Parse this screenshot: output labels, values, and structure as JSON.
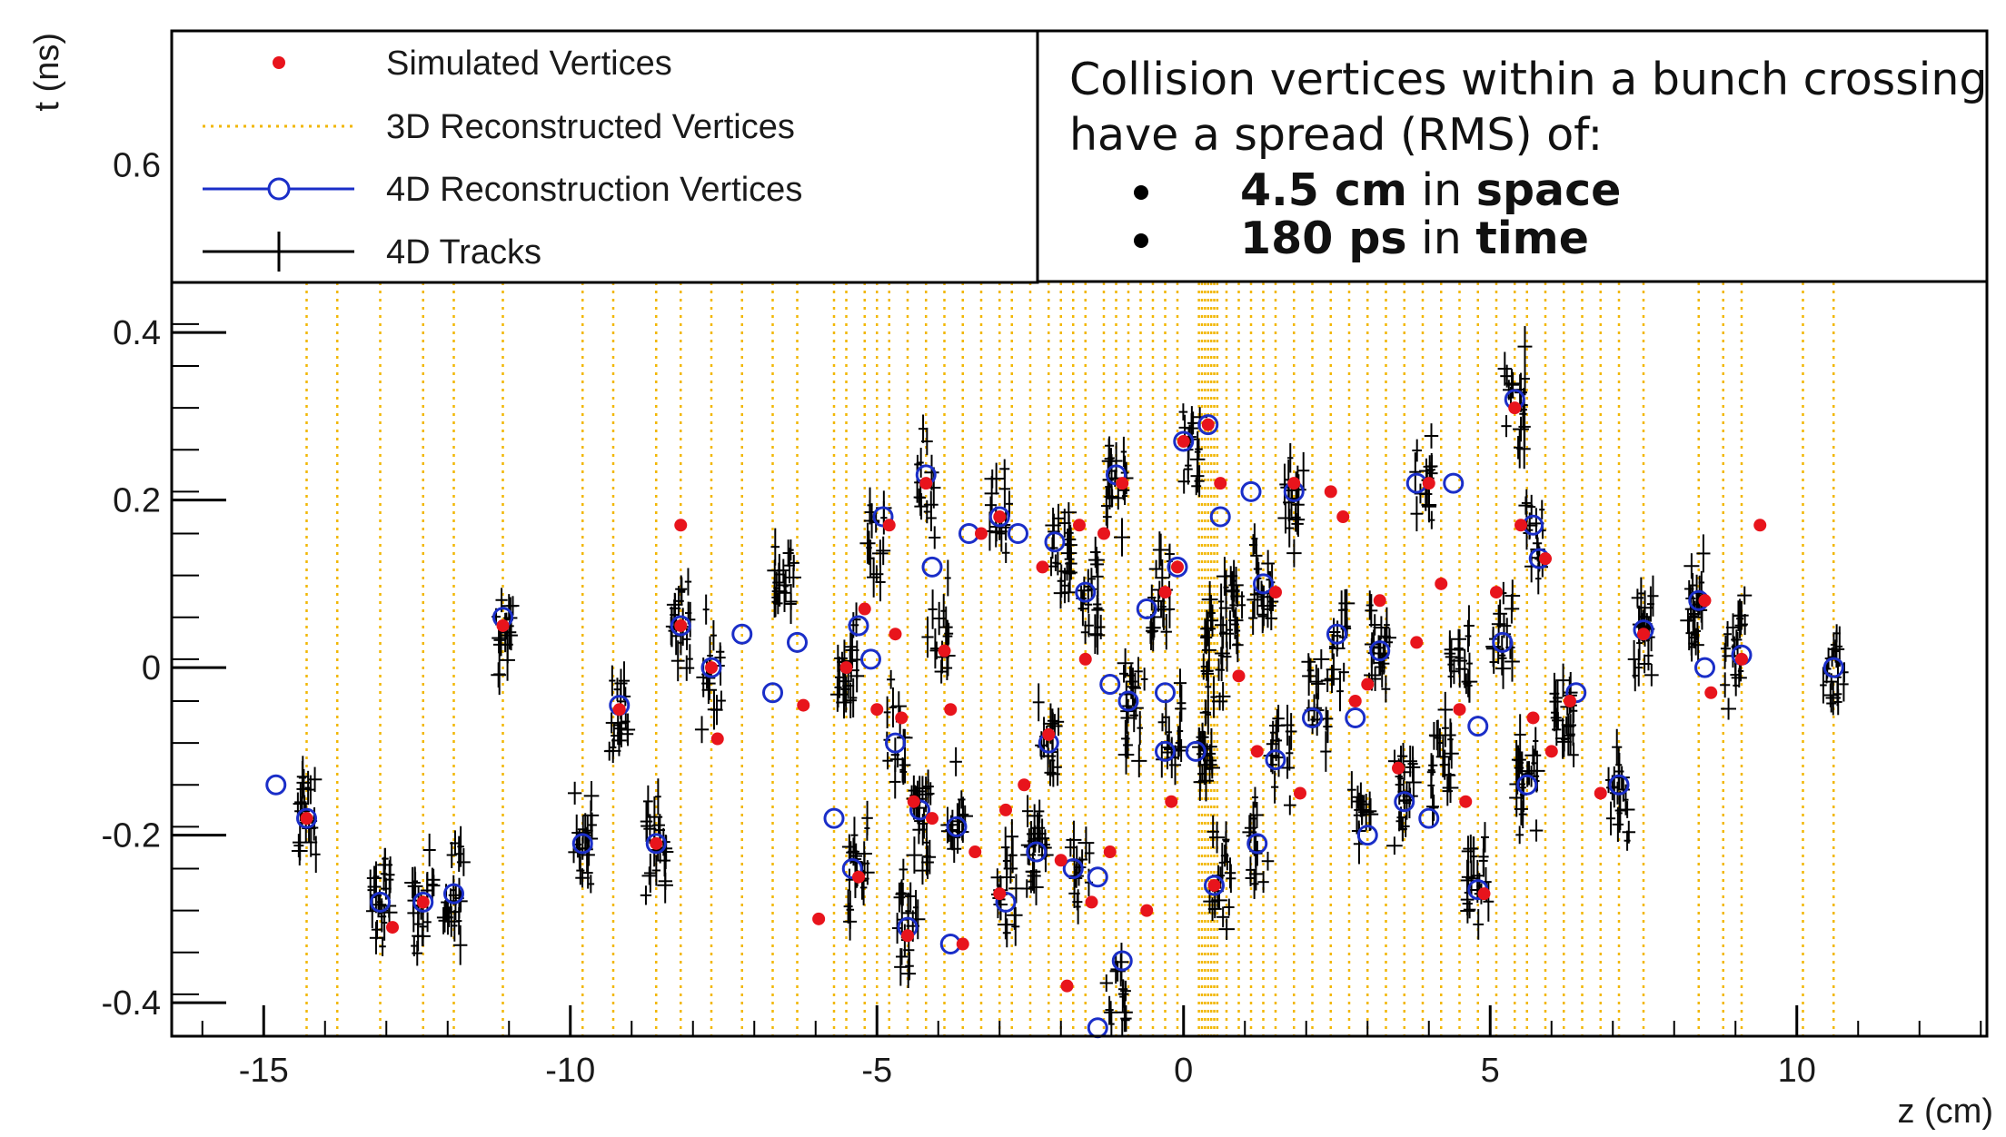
{
  "chart_data": {
    "type": "scatter",
    "xlabel": "z (cm)",
    "ylabel": "t (ns)",
    "xlim": [
      -16.5,
      13.1
    ],
    "ylim": [
      -0.44,
      0.76
    ],
    "xticks": [
      -15,
      -10,
      -5,
      0,
      5,
      10
    ],
    "xtick_labels": [
      "-15",
      "-10",
      "-5",
      "0",
      "5",
      "10"
    ],
    "yticks": [
      -0.4,
      -0.2,
      0,
      0.2,
      0.4,
      0.6
    ],
    "ytick_labels": [
      "-0.4",
      "-0.2",
      "0",
      "0.2",
      "0.4",
      "0.6"
    ],
    "grid": false,
    "legend_position": "top-left",
    "legend": [
      {
        "label": "Simulated Vertices",
        "marker": "filled-dot",
        "color": "#e8141c"
      },
      {
        "label": "3D Reconstructed Vertices",
        "marker": "dotted-line",
        "color": "#f2b705"
      },
      {
        "label": "4D Reconstruction Vertices",
        "marker": "open-circle-line",
        "color": "#1a2ec8"
      },
      {
        "label": "4D Tracks",
        "marker": "error-cross",
        "color": "#000000"
      }
    ],
    "annotation": {
      "line1": "Collision vertices within a bunch crossing",
      "line2": "have a spread (RMS) of:",
      "bullets": [
        {
          "value": "4.5 cm",
          "mid": " in ",
          "dimension": "space"
        },
        {
          "value": "180 ps",
          "mid": " in ",
          "dimension": "time"
        }
      ]
    },
    "series": [
      {
        "name": "3D Reconstructed Vertices",
        "color": "#f2b705",
        "z": [
          -14.3,
          -13.8,
          -13.1,
          -12.4,
          -11.9,
          -11.1,
          -9.8,
          -9.3,
          -8.6,
          -8.2,
          -7.7,
          -7.2,
          -6.7,
          -6.3,
          -5.7,
          -5.5,
          -5.2,
          -5.0,
          -4.8,
          -4.5,
          -4.2,
          -3.9,
          -3.6,
          -3.3,
          -3.0,
          -2.8,
          -2.5,
          -2.2,
          -2.0,
          -1.8,
          -1.6,
          -1.3,
          -1.1,
          -0.9,
          -0.7,
          -0.5,
          -0.3,
          -0.1,
          0.25,
          0.3,
          0.35,
          0.4,
          0.45,
          0.5,
          0.55,
          0.7,
          0.9,
          1.1,
          1.3,
          1.5,
          1.8,
          2.1,
          2.4,
          2.7,
          3.0,
          3.3,
          3.6,
          3.9,
          4.2,
          4.5,
          4.8,
          5.1,
          5.4,
          5.6,
          5.9,
          6.2,
          6.5,
          6.8,
          7.1,
          7.5,
          8.4,
          8.8,
          9.1,
          10.1,
          10.6
        ]
      },
      {
        "name": "Simulated Vertices",
        "color": "#e8141c",
        "points": [
          [
            -14.3,
            -0.18
          ],
          [
            -12.9,
            -0.31
          ],
          [
            -12.4,
            -0.28
          ],
          [
            -11.1,
            0.05
          ],
          [
            -9.2,
            -0.05
          ],
          [
            -8.6,
            -0.21
          ],
          [
            -8.2,
            0.17
          ],
          [
            -8.2,
            0.05
          ],
          [
            -7.7,
            0.0
          ],
          [
            -7.6,
            -0.085
          ],
          [
            -6.2,
            -0.045
          ],
          [
            -5.95,
            -0.3
          ],
          [
            -5.5,
            0.0
          ],
          [
            -5.3,
            -0.25
          ],
          [
            -5.2,
            0.07
          ],
          [
            -5.0,
            -0.05
          ],
          [
            -4.8,
            0.17
          ],
          [
            -4.7,
            0.04
          ],
          [
            -4.6,
            -0.06
          ],
          [
            -4.5,
            -0.32
          ],
          [
            -4.4,
            -0.16
          ],
          [
            -4.2,
            0.22
          ],
          [
            -4.1,
            -0.18
          ],
          [
            -3.9,
            0.02
          ],
          [
            -3.8,
            -0.05
          ],
          [
            -3.6,
            -0.33
          ],
          [
            -3.4,
            -0.22
          ],
          [
            -3.3,
            0.16
          ],
          [
            -3.0,
            0.18
          ],
          [
            -3.0,
            -0.27
          ],
          [
            -2.9,
            -0.17
          ],
          [
            -2.6,
            -0.14
          ],
          [
            -2.3,
            0.12
          ],
          [
            -2.2,
            -0.08
          ],
          [
            -2.0,
            -0.23
          ],
          [
            -1.9,
            -0.38
          ],
          [
            -1.7,
            0.17
          ],
          [
            -1.6,
            0.01
          ],
          [
            -1.5,
            -0.28
          ],
          [
            -1.3,
            0.16
          ],
          [
            -1.2,
            -0.22
          ],
          [
            -1.0,
            0.22
          ],
          [
            -0.6,
            -0.29
          ],
          [
            -0.3,
            0.09
          ],
          [
            -0.2,
            -0.16
          ],
          [
            -0.1,
            0.12
          ],
          [
            0.0,
            0.27
          ],
          [
            0.4,
            0.29
          ],
          [
            0.5,
            -0.26
          ],
          [
            0.6,
            0.22
          ],
          [
            0.9,
            -0.01
          ],
          [
            1.2,
            -0.1
          ],
          [
            1.5,
            0.09
          ],
          [
            1.8,
            0.22
          ],
          [
            1.9,
            -0.15
          ],
          [
            2.4,
            0.21
          ],
          [
            2.6,
            0.18
          ],
          [
            2.8,
            -0.04
          ],
          [
            3.0,
            -0.02
          ],
          [
            3.2,
            0.08
          ],
          [
            3.5,
            -0.12
          ],
          [
            3.8,
            0.03
          ],
          [
            4.0,
            0.22
          ],
          [
            4.2,
            0.1
          ],
          [
            4.5,
            -0.05
          ],
          [
            4.6,
            -0.16
          ],
          [
            4.9,
            -0.27
          ],
          [
            5.1,
            0.09
          ],
          [
            5.4,
            0.31
          ],
          [
            5.5,
            0.17
          ],
          [
            5.7,
            -0.06
          ],
          [
            5.9,
            0.13
          ],
          [
            6.0,
            -0.1
          ],
          [
            6.3,
            -0.04
          ],
          [
            6.8,
            -0.15
          ],
          [
            7.5,
            0.04
          ],
          [
            8.5,
            0.08
          ],
          [
            8.6,
            -0.03
          ],
          [
            9.1,
            0.01
          ],
          [
            9.4,
            0.17
          ]
        ]
      },
      {
        "name": "4D Reconstruction Vertices",
        "color": "#1a2ec8",
        "points": [
          [
            -14.8,
            -0.14
          ],
          [
            -14.3,
            -0.18
          ],
          [
            -13.1,
            -0.28
          ],
          [
            -12.4,
            -0.28
          ],
          [
            -11.9,
            -0.27
          ],
          [
            -11.1,
            0.06
          ],
          [
            -9.8,
            -0.21
          ],
          [
            -9.2,
            -0.045
          ],
          [
            -8.6,
            -0.21
          ],
          [
            -8.2,
            0.05
          ],
          [
            -7.7,
            0.0
          ],
          [
            -7.2,
            0.04
          ],
          [
            -6.7,
            -0.03
          ],
          [
            -6.3,
            0.03
          ],
          [
            -5.7,
            -0.18
          ],
          [
            -5.4,
            -0.24
          ],
          [
            -5.3,
            0.05
          ],
          [
            -5.1,
            0.01
          ],
          [
            -4.9,
            0.18
          ],
          [
            -4.7,
            -0.09
          ],
          [
            -4.5,
            -0.31
          ],
          [
            -4.3,
            -0.17
          ],
          [
            -4.2,
            0.23
          ],
          [
            -4.1,
            0.12
          ],
          [
            -3.8,
            -0.33
          ],
          [
            -3.7,
            -0.19
          ],
          [
            -3.5,
            0.16
          ],
          [
            -3.0,
            0.18
          ],
          [
            -2.9,
            -0.28
          ],
          [
            -2.7,
            0.16
          ],
          [
            -2.4,
            -0.22
          ],
          [
            -2.2,
            -0.09
          ],
          [
            -2.1,
            0.15
          ],
          [
            -1.8,
            -0.24
          ],
          [
            -1.6,
            0.09
          ],
          [
            -1.4,
            -0.25
          ],
          [
            -1.4,
            -0.43
          ],
          [
            -1.2,
            -0.02
          ],
          [
            -1.1,
            0.23
          ],
          [
            -1.0,
            -0.35
          ],
          [
            -0.9,
            -0.04
          ],
          [
            -0.6,
            0.07
          ],
          [
            -0.3,
            -0.03
          ],
          [
            -0.3,
            -0.1
          ],
          [
            -0.1,
            0.12
          ],
          [
            0.0,
            0.27
          ],
          [
            0.2,
            -0.1
          ],
          [
            0.4,
            0.29
          ],
          [
            0.5,
            -0.26
          ],
          [
            0.6,
            0.18
          ],
          [
            1.1,
            0.21
          ],
          [
            1.2,
            -0.21
          ],
          [
            1.3,
            0.1
          ],
          [
            1.5,
            -0.11
          ],
          [
            1.8,
            0.21
          ],
          [
            2.1,
            -0.06
          ],
          [
            2.5,
            0.04
          ],
          [
            2.8,
            -0.06
          ],
          [
            3.0,
            -0.2
          ],
          [
            3.2,
            0.02
          ],
          [
            3.6,
            -0.16
          ],
          [
            3.8,
            0.22
          ],
          [
            4.0,
            -0.18
          ],
          [
            4.4,
            0.22
          ],
          [
            4.8,
            -0.07
          ],
          [
            4.8,
            -0.265
          ],
          [
            5.2,
            0.03
          ],
          [
            5.4,
            0.32
          ],
          [
            5.6,
            -0.14
          ],
          [
            5.7,
            0.17
          ],
          [
            5.8,
            0.13
          ],
          [
            6.4,
            -0.03
          ],
          [
            7.1,
            -0.14
          ],
          [
            7.5,
            0.045
          ],
          [
            8.4,
            0.08
          ],
          [
            8.5,
            0.0
          ],
          [
            9.1,
            0.015
          ],
          [
            10.6,
            0.0
          ]
        ]
      },
      {
        "name": "4D Tracks",
        "color": "#000000",
        "clusters": [
          {
            "z": -14.3,
            "t": -0.18
          },
          {
            "z": -13.1,
            "t": -0.28
          },
          {
            "z": -12.4,
            "t": -0.28
          },
          {
            "z": -11.9,
            "t": -0.27
          },
          {
            "z": -11.1,
            "t": 0.05
          },
          {
            "z": -9.8,
            "t": -0.21
          },
          {
            "z": -9.2,
            "t": -0.05
          },
          {
            "z": -8.6,
            "t": -0.21
          },
          {
            "z": -8.2,
            "t": 0.05
          },
          {
            "z": -7.7,
            "t": 0.0
          },
          {
            "z": -6.5,
            "t": 0.11
          },
          {
            "z": -5.5,
            "t": 0.0
          },
          {
            "z": -5.3,
            "t": -0.24
          },
          {
            "z": -5.0,
            "t": 0.15
          },
          {
            "z": -4.7,
            "t": -0.09
          },
          {
            "z": -4.5,
            "t": -0.31
          },
          {
            "z": -4.3,
            "t": -0.17
          },
          {
            "z": -4.2,
            "t": 0.22
          },
          {
            "z": -4.0,
            "t": 0.05
          },
          {
            "z": -3.7,
            "t": -0.19
          },
          {
            "z": -3.0,
            "t": 0.18
          },
          {
            "z": -2.9,
            "t": -0.27
          },
          {
            "z": -2.4,
            "t": -0.22
          },
          {
            "z": -2.2,
            "t": -0.09
          },
          {
            "z": -2.0,
            "t": 0.13
          },
          {
            "z": -1.7,
            "t": -0.24
          },
          {
            "z": -1.5,
            "t": 0.08
          },
          {
            "z": -1.1,
            "t": 0.22
          },
          {
            "z": -1.1,
            "t": -0.38
          },
          {
            "z": -0.8,
            "t": -0.05
          },
          {
            "z": -0.4,
            "t": 0.08
          },
          {
            "z": -0.2,
            "t": -0.08
          },
          {
            "z": 0.1,
            "t": 0.26
          },
          {
            "z": 0.4,
            "t": -0.1
          },
          {
            "z": 0.5,
            "t": 0.02
          },
          {
            "z": 0.6,
            "t": -0.26
          },
          {
            "z": 0.8,
            "t": 0.07
          },
          {
            "z": 1.2,
            "t": -0.2
          },
          {
            "z": 1.3,
            "t": 0.1
          },
          {
            "z": 1.6,
            "t": -0.1
          },
          {
            "z": 1.8,
            "t": 0.2
          },
          {
            "z": 2.2,
            "t": -0.04
          },
          {
            "z": 2.5,
            "t": 0.04
          },
          {
            "z": 2.9,
            "t": -0.18
          },
          {
            "z": 3.2,
            "t": 0.02
          },
          {
            "z": 3.6,
            "t": -0.15
          },
          {
            "z": 3.9,
            "t": 0.22
          },
          {
            "z": 4.2,
            "t": -0.1
          },
          {
            "z": 4.5,
            "t": 0.02
          },
          {
            "z": 4.8,
            "t": -0.25
          },
          {
            "z": 5.2,
            "t": 0.03
          },
          {
            "z": 5.4,
            "t": 0.31
          },
          {
            "z": 5.6,
            "t": -0.13
          },
          {
            "z": 5.7,
            "t": 0.16
          },
          {
            "z": 6.2,
            "t": -0.06
          },
          {
            "z": 7.1,
            "t": -0.15
          },
          {
            "z": 7.5,
            "t": 0.04
          },
          {
            "z": 8.4,
            "t": 0.08
          },
          {
            "z": 9.0,
            "t": 0.01
          },
          {
            "z": 10.6,
            "t": 0.0
          }
        ]
      }
    ]
  }
}
